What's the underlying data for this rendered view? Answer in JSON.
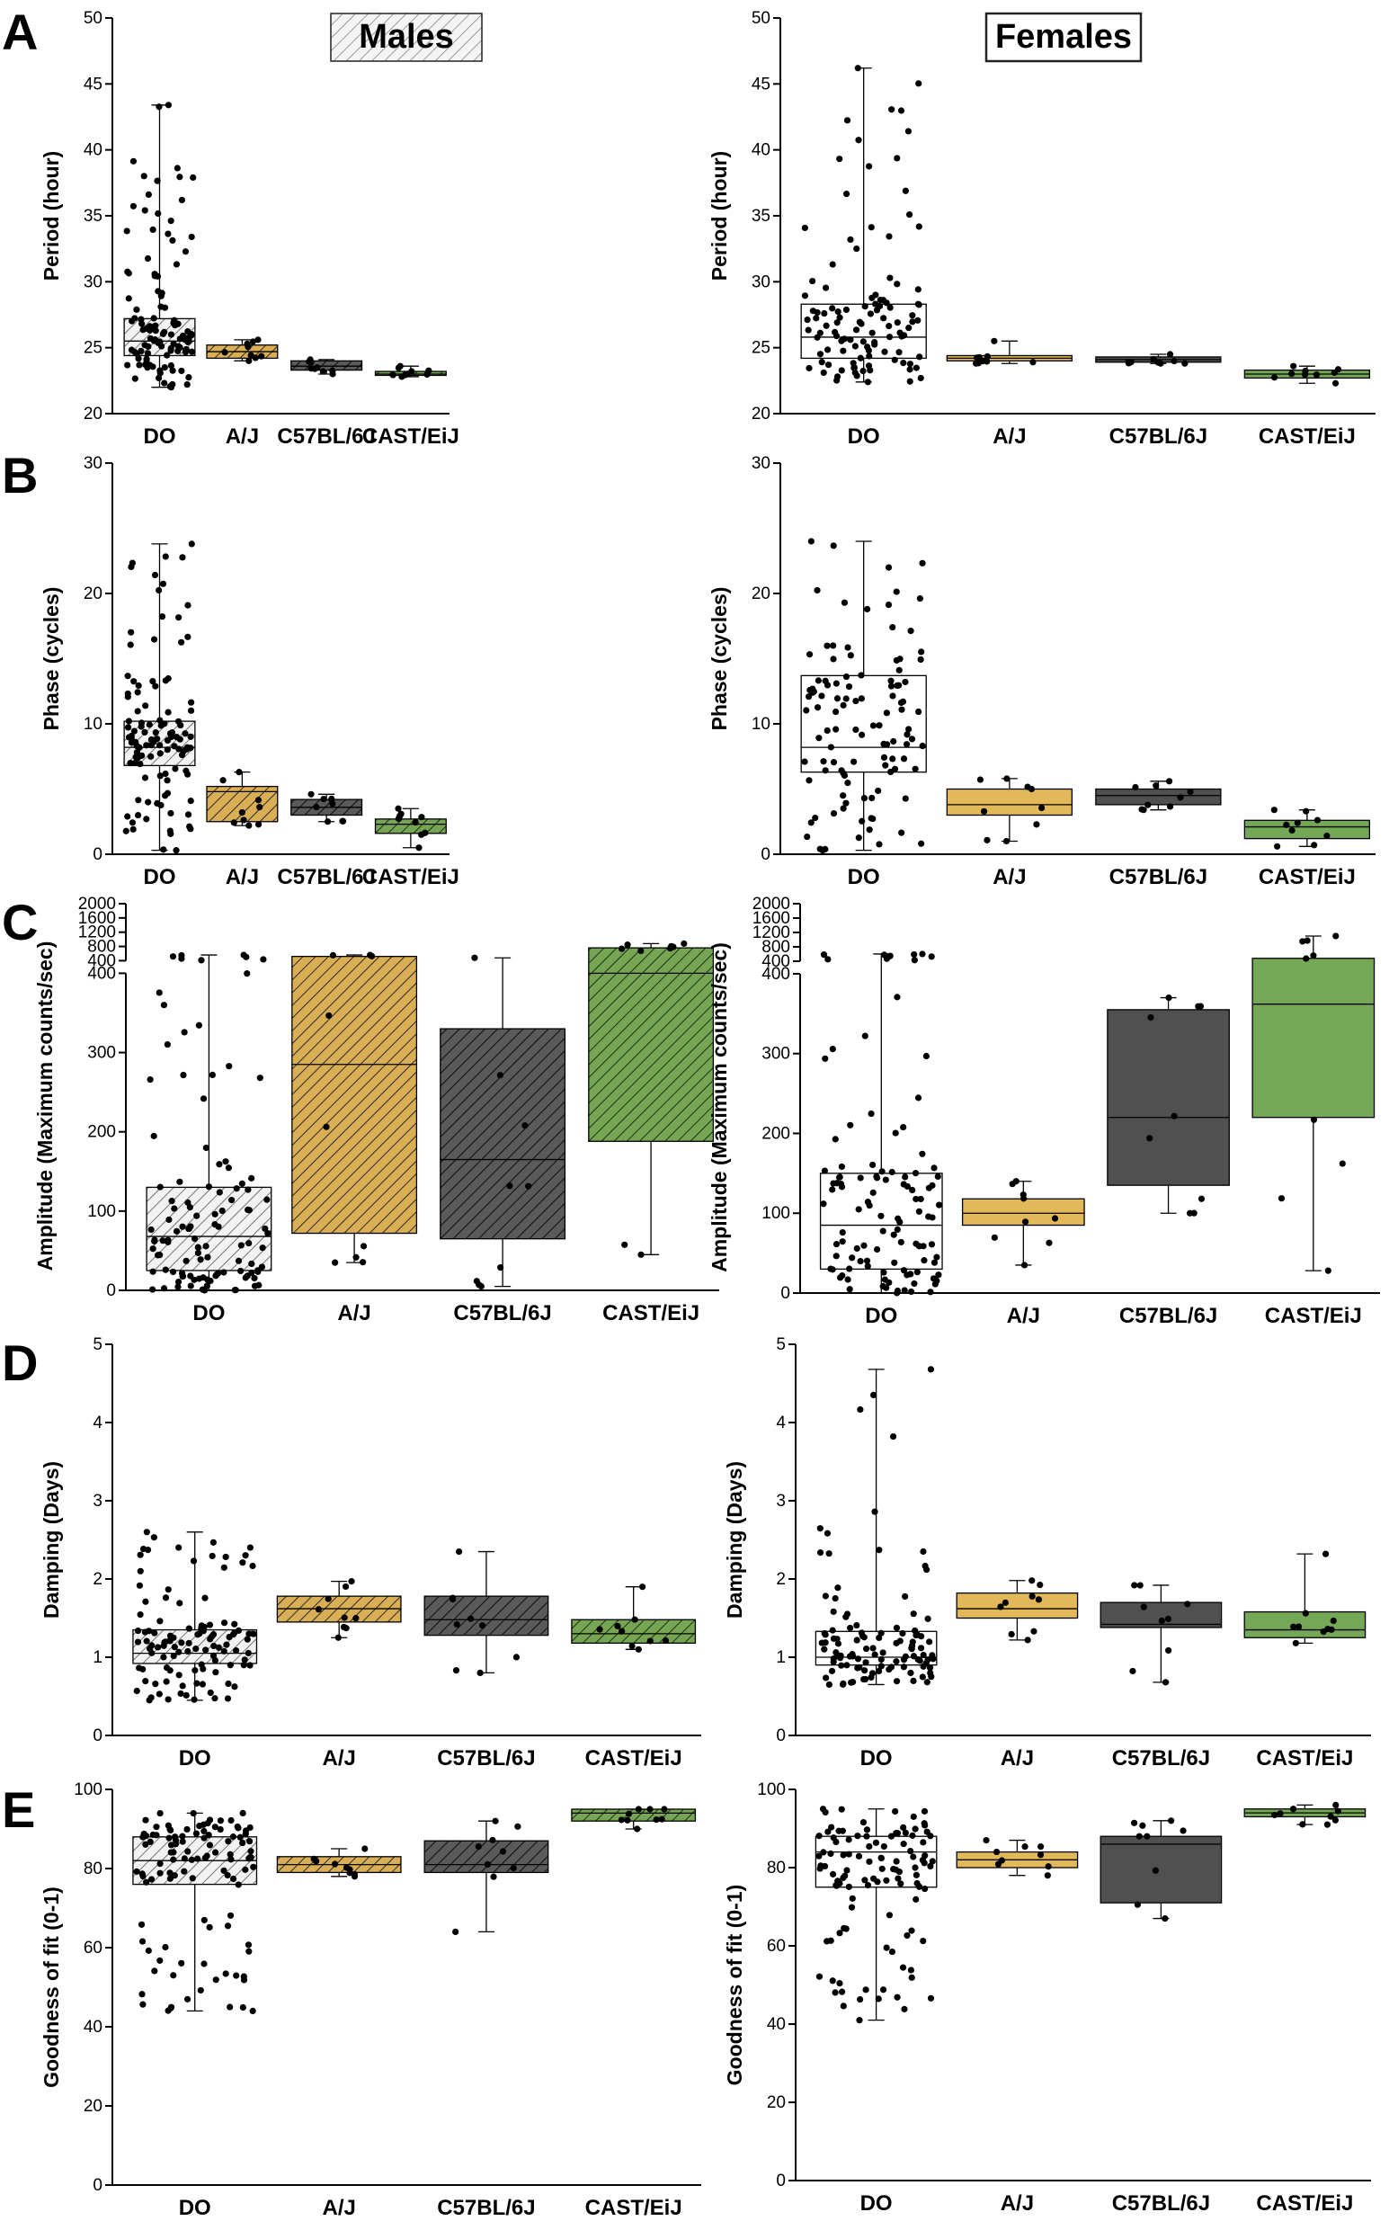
{
  "headers": {
    "males": "Males",
    "females": "Females"
  },
  "chart_data": [
    {
      "id": "A-males",
      "type": "box",
      "panel": "A",
      "sex": "males",
      "ylabel": "Period (hour)",
      "ylim": [
        20,
        50
      ],
      "yticks": [
        20,
        25,
        30,
        35,
        40,
        45,
        50
      ],
      "categories": [
        "DO",
        "A/J",
        "C57BL/6J",
        "CAST/EiJ"
      ],
      "boxes": [
        {
          "min": 22.0,
          "q1": 24.4,
          "median": 25.5,
          "q3": 27.2,
          "max": 43.4
        },
        {
          "min": 24.0,
          "q1": 24.2,
          "median": 24.7,
          "q3": 25.2,
          "max": 25.6
        },
        {
          "min": 23.0,
          "q1": 23.3,
          "median": 23.6,
          "q3": 24.0,
          "max": 24.1
        },
        {
          "min": 22.8,
          "q1": 22.9,
          "median": 23.0,
          "q3": 23.2,
          "max": 23.6
        }
      ]
    },
    {
      "id": "A-females",
      "type": "box",
      "panel": "A",
      "sex": "females",
      "ylabel": "Period (hour)",
      "ylim": [
        20,
        50
      ],
      "yticks": [
        20,
        25,
        30,
        35,
        40,
        45,
        50
      ],
      "categories": [
        "DO",
        "A/J",
        "C57BL/6J",
        "CAST/EiJ"
      ],
      "boxes": [
        {
          "min": 22.4,
          "q1": 24.2,
          "median": 25.8,
          "q3": 28.3,
          "max": 46.2
        },
        {
          "min": 23.8,
          "q1": 24.0,
          "median": 24.2,
          "q3": 24.4,
          "max": 25.5
        },
        {
          "min": 23.8,
          "q1": 23.9,
          "median": 24.1,
          "q3": 24.3,
          "max": 24.5
        },
        {
          "min": 22.3,
          "q1": 22.7,
          "median": 23.0,
          "q3": 23.3,
          "max": 23.6
        }
      ]
    },
    {
      "id": "B-males",
      "type": "box",
      "panel": "B",
      "sex": "males",
      "ylabel": "Phase (cycles)",
      "ylim": [
        0,
        30
      ],
      "yticks": [
        0,
        10,
        20,
        30
      ],
      "categories": [
        "DO",
        "A/J",
        "C57BL/6J",
        "CAST/EiJ"
      ],
      "boxes": [
        {
          "min": 0.3,
          "q1": 6.8,
          "median": 8.2,
          "q3": 10.2,
          "max": 23.8
        },
        {
          "min": 2.2,
          "q1": 2.5,
          "median": 4.8,
          "q3": 5.2,
          "max": 6.3
        },
        {
          "min": 2.5,
          "q1": 3.0,
          "median": 3.6,
          "q3": 4.2,
          "max": 4.6
        },
        {
          "min": 0.5,
          "q1": 1.6,
          "median": 2.3,
          "q3": 2.7,
          "max": 3.5
        }
      ]
    },
    {
      "id": "B-females",
      "type": "box",
      "panel": "B",
      "sex": "females",
      "ylabel": "Phase (cycles)",
      "ylim": [
        0,
        30
      ],
      "yticks": [
        0,
        10,
        20,
        30
      ],
      "categories": [
        "DO",
        "A/J",
        "C57BL/6J",
        "CAST/EiJ"
      ],
      "boxes": [
        {
          "min": 0.3,
          "q1": 6.3,
          "median": 8.2,
          "q3": 13.7,
          "max": 24.0
        },
        {
          "min": 1.0,
          "q1": 3.0,
          "median": 3.8,
          "q3": 5.0,
          "max": 5.8
        },
        {
          "min": 3.4,
          "q1": 3.8,
          "median": 4.5,
          "q3": 5.0,
          "max": 5.6
        },
        {
          "min": 0.6,
          "q1": 1.2,
          "median": 2.1,
          "q3": 2.6,
          "max": 3.4
        }
      ]
    },
    {
      "id": "C-males",
      "type": "box",
      "panel": "C",
      "sex": "males",
      "ylabel": "Amplitude (Maximum counts/sec)",
      "ylim": [
        0,
        2000
      ],
      "axis_break": 400,
      "yticks": [
        0,
        100,
        200,
        300,
        400,
        800,
        1200,
        1600,
        2000
      ],
      "categories": [
        "DO",
        "A/J",
        "C57BL/6J",
        "CAST/EiJ"
      ],
      "boxes": [
        {
          "min": 0,
          "q1": 25,
          "median": 68,
          "q3": 130,
          "max": 560
        },
        {
          "min": 35,
          "q1": 72,
          "median": 285,
          "q3": 520,
          "max": 560
        },
        {
          "min": 5,
          "q1": 65,
          "median": 165,
          "q3": 330,
          "max": 480
        },
        {
          "min": 45,
          "q1": 188,
          "median": 400,
          "q3": 760,
          "max": 880
        }
      ]
    },
    {
      "id": "C-females",
      "type": "box",
      "panel": "C",
      "sex": "females",
      "ylabel": "Amplitude (Maximum counts/sec)",
      "ylim": [
        0,
        2000
      ],
      "axis_break": 400,
      "yticks": [
        0,
        100,
        200,
        300,
        400,
        800,
        1200,
        1600,
        2000
      ],
      "categories": [
        "DO",
        "A/J",
        "C57BL/6J",
        "CAST/EiJ"
      ],
      "boxes": [
        {
          "min": 0,
          "q1": 30,
          "median": 85,
          "q3": 150,
          "max": 600
        },
        {
          "min": 35,
          "q1": 85,
          "median": 100,
          "q3": 118,
          "max": 140
        },
        {
          "min": 100,
          "q1": 135,
          "median": 220,
          "q3": 355,
          "max": 370
        },
        {
          "min": 28,
          "q1": 220,
          "median": 362,
          "q3": 480,
          "max": 1100
        }
      ]
    },
    {
      "id": "D-males",
      "type": "box",
      "panel": "D",
      "sex": "males",
      "ylabel": "Damping (Days)",
      "ylim": [
        0,
        5
      ],
      "yticks": [
        0,
        1,
        2,
        3,
        4,
        5
      ],
      "categories": [
        "DO",
        "A/J",
        "C57BL/6J",
        "CAST/EiJ"
      ],
      "boxes": [
        {
          "min": 0.45,
          "q1": 0.92,
          "median": 1.05,
          "q3": 1.35,
          "max": 2.6
        },
        {
          "min": 1.25,
          "q1": 1.45,
          "median": 1.62,
          "q3": 1.78,
          "max": 1.97
        },
        {
          "min": 0.8,
          "q1": 1.28,
          "median": 1.48,
          "q3": 1.78,
          "max": 2.35
        },
        {
          "min": 1.1,
          "q1": 1.18,
          "median": 1.3,
          "q3": 1.48,
          "max": 1.9
        }
      ]
    },
    {
      "id": "D-females",
      "type": "box",
      "panel": "D",
      "sex": "females",
      "ylabel": "Damping (Days)",
      "ylim": [
        0,
        5
      ],
      "yticks": [
        0,
        1,
        2,
        3,
        4,
        5
      ],
      "categories": [
        "DO",
        "A/J",
        "C57BL/6J",
        "CAST/EiJ"
      ],
      "boxes": [
        {
          "min": 0.65,
          "q1": 0.9,
          "median": 1.0,
          "q3": 1.33,
          "max": 4.68
        },
        {
          "min": 1.22,
          "q1": 1.5,
          "median": 1.62,
          "q3": 1.82,
          "max": 1.98
        },
        {
          "min": 0.68,
          "q1": 1.38,
          "median": 1.42,
          "q3": 1.7,
          "max": 1.92
        },
        {
          "min": 1.18,
          "q1": 1.25,
          "median": 1.35,
          "q3": 1.58,
          "max": 2.32
        }
      ]
    },
    {
      "id": "E-males",
      "type": "box",
      "panel": "E",
      "sex": "males",
      "ylabel": "Goodness of fit (0-1)",
      "ylim": [
        0,
        100
      ],
      "yticks": [
        0,
        20,
        40,
        60,
        80,
        100
      ],
      "categories": [
        "DO",
        "A/J",
        "C57BL/6J",
        "CAST/EiJ"
      ],
      "boxes": [
        {
          "min": 44,
          "q1": 76,
          "median": 82,
          "q3": 88,
          "max": 94
        },
        {
          "min": 78,
          "q1": 79,
          "median": 81,
          "q3": 83,
          "max": 85
        },
        {
          "min": 64,
          "q1": 79,
          "median": 81,
          "q3": 87,
          "max": 92
        },
        {
          "min": 90,
          "q1": 92,
          "median": 94,
          "q3": 95,
          "max": 95
        }
      ]
    },
    {
      "id": "E-females",
      "type": "box",
      "panel": "E",
      "sex": "females",
      "ylabel": "Goodness of fit (0-1)",
      "ylim": [
        0,
        100
      ],
      "yticks": [
        0,
        20,
        40,
        60,
        80,
        100
      ],
      "categories": [
        "DO",
        "A/J",
        "C57BL/6J",
        "CAST/EiJ"
      ],
      "boxes": [
        {
          "min": 41,
          "q1": 75,
          "median": 84,
          "q3": 88,
          "max": 95
        },
        {
          "min": 78,
          "q1": 80,
          "median": 82,
          "q3": 84,
          "max": 87
        },
        {
          "min": 67,
          "q1": 71,
          "median": 86,
          "q3": 88,
          "max": 92
        },
        {
          "min": 91,
          "q1": 93,
          "median": 94,
          "q3": 95,
          "max": 96
        }
      ]
    }
  ],
  "strains": {
    "DO": {
      "color": "#e8e8e8",
      "pattern": "hatch"
    },
    "A/J": {
      "color": "#d4a84b",
      "pattern": "hatch"
    },
    "C57BL/6J": {
      "color": "#4a4a4a",
      "pattern": "hatch"
    },
    "CAST/EiJ": {
      "color": "#6a9a4a",
      "pattern": "hatch"
    }
  },
  "female_colors": {
    "DO": "#ffffff",
    "A/J": "#e2b858",
    "C57BL/6J": "#505050",
    "CAST/EiJ": "#74a856"
  }
}
